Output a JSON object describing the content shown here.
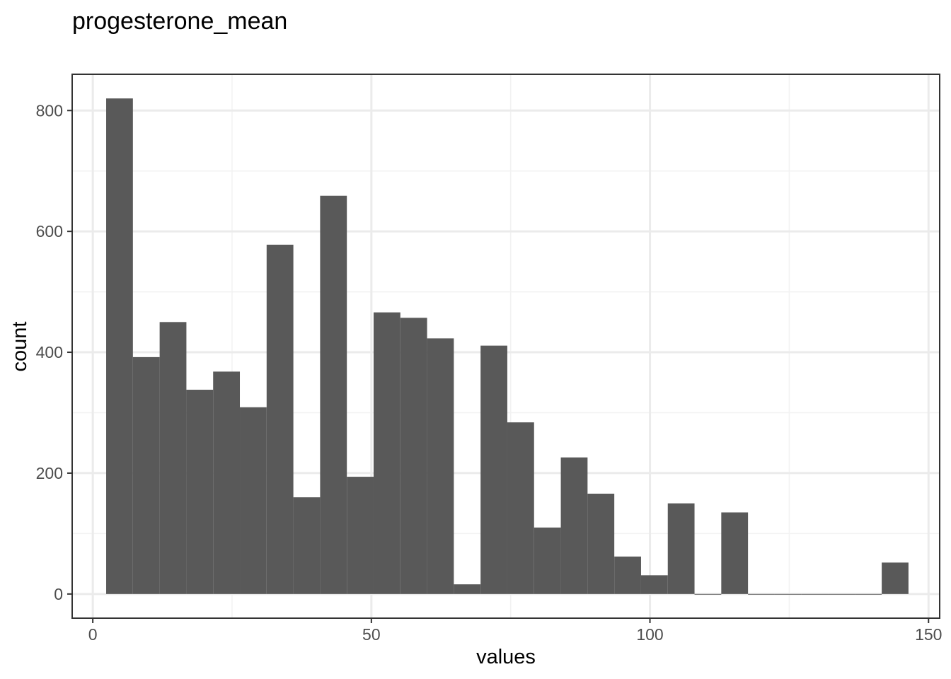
{
  "chart_data": {
    "type": "bar",
    "subtype": "histogram",
    "title": "progesterone_mean",
    "xlabel": "values",
    "ylabel": "count",
    "xlim": [
      -3.7,
      152
    ],
    "ylim": [
      -40,
      860
    ],
    "x_ticks": [
      0,
      50,
      100,
      150
    ],
    "x_tick_labels": [
      "0",
      "50",
      "100",
      "150"
    ],
    "y_ticks": [
      0,
      200,
      400,
      600,
      800
    ],
    "y_tick_labels": [
      "0",
      "200",
      "400",
      "600",
      "800"
    ],
    "bin_width": 4.8,
    "bin_start": 2.4,
    "values": [
      820,
      392,
      450,
      338,
      368,
      309,
      578,
      160,
      659,
      194,
      466,
      457,
      423,
      16,
      411,
      284,
      110,
      226,
      166,
      62,
      31,
      150,
      0,
      135,
      0,
      0,
      0,
      0,
      0,
      52
    ],
    "grid": true,
    "legend": "none",
    "colors": {
      "bar": "#595959",
      "grid_major": "#ebebeb",
      "grid_minor": "#f2f2f2",
      "panel_border": "#333333",
      "tick_text": "#4d4d4d"
    }
  }
}
